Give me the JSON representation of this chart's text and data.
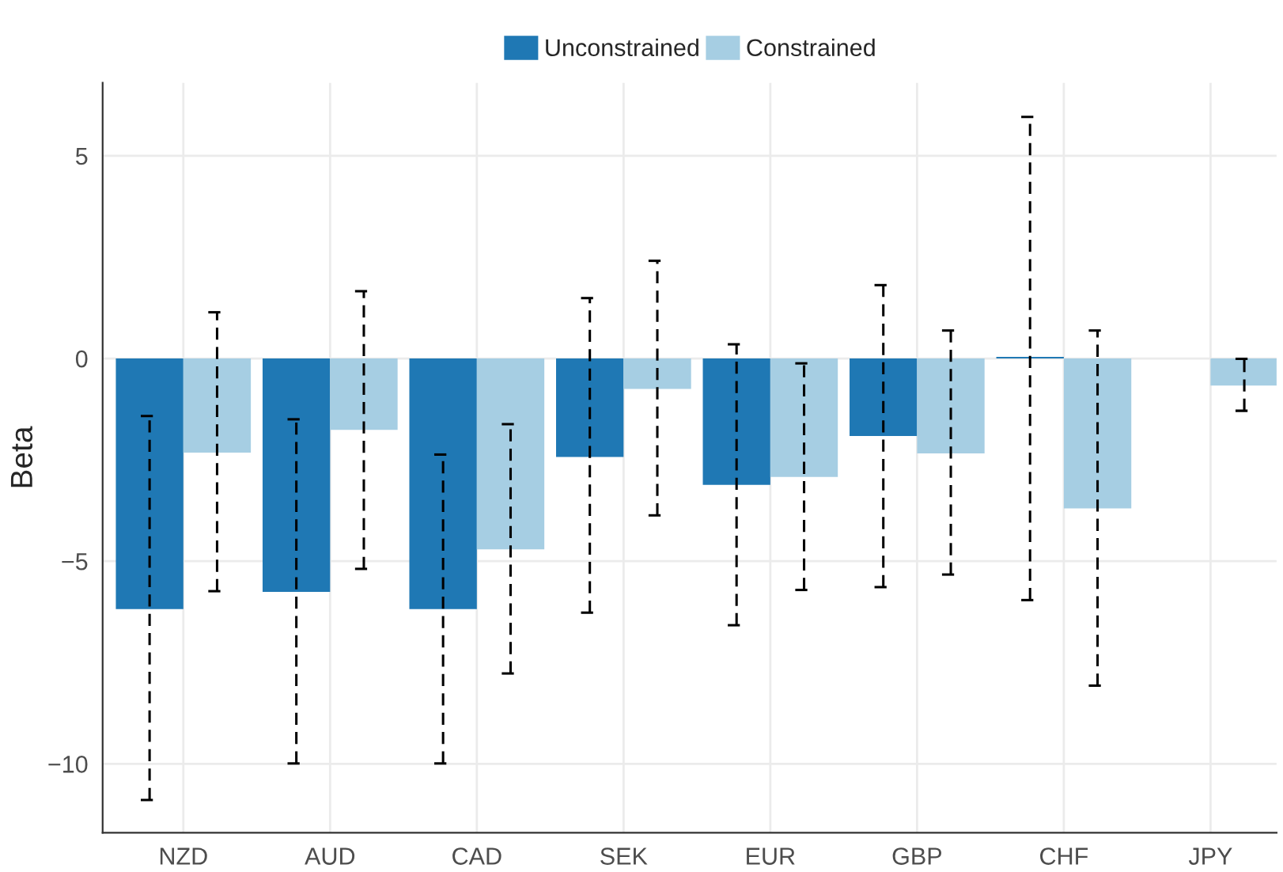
{
  "chart_data": {
    "type": "bar",
    "ylabel": "Beta",
    "categories": [
      "NZD",
      "AUD",
      "CAD",
      "SEK",
      "EUR",
      "GBP",
      "CHF",
      "JPY"
    ],
    "series": [
      {
        "name": "Unconstrained",
        "color": "#1f78b4",
        "values": [
          -6.18,
          -5.76,
          -6.18,
          -2.43,
          -3.12,
          -1.91,
          0.04,
          null
        ],
        "errors": [
          [
            -10.89,
            -1.42
          ],
          [
            -9.99,
            -1.5
          ],
          [
            -9.99,
            -2.37
          ],
          [
            -6.27,
            1.49
          ],
          [
            -6.58,
            0.35
          ],
          [
            -5.64,
            1.81
          ],
          [
            -5.96,
            5.96
          ],
          null
        ]
      },
      {
        "name": "Constrained",
        "color": "#a6cee3",
        "values": [
          -2.32,
          -1.76,
          -4.71,
          -0.75,
          -2.92,
          -2.34,
          -3.7,
          -0.67
        ],
        "errors": [
          [
            -5.74,
            1.14
          ],
          [
            -5.19,
            1.66
          ],
          [
            -7.77,
            -1.62
          ],
          [
            -3.87,
            2.41
          ],
          [
            -5.71,
            -0.12
          ],
          [
            -5.33,
            0.69
          ],
          [
            -8.07,
            0.69
          ],
          [
            -1.29,
            -0.01
          ]
        ]
      }
    ],
    "ylim": [
      -11.7,
      6.8
    ],
    "yticks": [
      {
        "value": -10,
        "label": "−10"
      },
      {
        "value": -5,
        "label": "−5"
      },
      0,
      5
    ],
    "grid": true,
    "legend": "top",
    "line_style": "dashed"
  }
}
